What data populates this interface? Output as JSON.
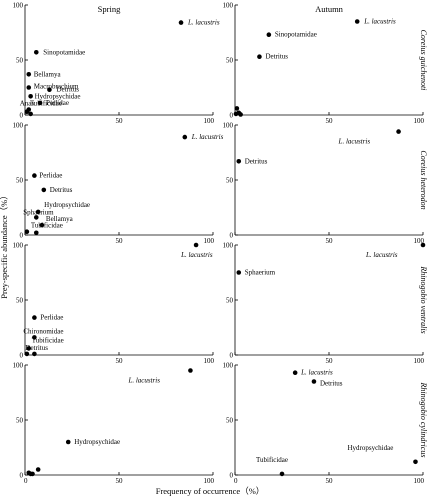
{
  "chart_data": {
    "type": "scatter",
    "column_titles": [
      "Spring",
      "Autumn"
    ],
    "xlabel": "Frequency of occurrence（%）",
    "ylabel": "Prey-specific abundance（%）",
    "xlim": [
      0,
      100
    ],
    "ylim": [
      0,
      100
    ],
    "x_ticks": [
      "0",
      "50",
      "100"
    ],
    "y_ticks": [
      "0",
      "50",
      "100"
    ],
    "species": [
      "Coreius guichenoti",
      "Coreius heterodon",
      "Rhinogobio ventralis",
      "Rhinogobio cylindricus"
    ],
    "panels": [
      {
        "species": "Coreius guichenoti",
        "season": "Spring",
        "points": [
          {
            "x": 83,
            "y": 84,
            "label": "L. lacustris",
            "italic": true
          },
          {
            "x": 6,
            "y": 57,
            "label": "Sinopotamidae"
          },
          {
            "x": 2,
            "y": 37,
            "label": "Bellamya"
          },
          {
            "x": 2,
            "y": 25,
            "label": "Macrobrachium"
          },
          {
            "x": 13,
            "y": 23,
            "label": "Detritus"
          },
          {
            "x": 3,
            "y": 17,
            "label": "Hydropsychidae"
          },
          {
            "x": 8,
            "y": 11,
            "label": "Perlidae"
          },
          {
            "x": 2,
            "y": 5,
            "label": "Anax"
          },
          {
            "x": 1,
            "y": 3,
            "label": "Tubificidae"
          },
          {
            "x": 3,
            "y": 1,
            "label": ""
          }
        ]
      },
      {
        "species": "Coreius guichenoti",
        "season": "Autumn",
        "points": [
          {
            "x": 65,
            "y": 85,
            "label": "L. lacustris",
            "italic": true
          },
          {
            "x": 18,
            "y": 73,
            "label": "Sinopotamidae"
          },
          {
            "x": 13,
            "y": 53,
            "label": "Detritus"
          },
          {
            "x": 1,
            "y": 6,
            "label": ""
          },
          {
            "x": 2,
            "y": 2,
            "label": ""
          },
          {
            "x": 0.5,
            "y": 1,
            "label": ""
          },
          {
            "x": 3,
            "y": 0.5,
            "label": ""
          }
        ]
      },
      {
        "species": "Coreius heterodon",
        "season": "Spring",
        "points": [
          {
            "x": 85,
            "y": 89,
            "label": "L. lacustris",
            "italic": true
          },
          {
            "x": 5,
            "y": 54,
            "label": "Perlidae"
          },
          {
            "x": 10,
            "y": 41,
            "label": "Detritus"
          },
          {
            "x": 7,
            "y": 21,
            "label": "Hydropsychidae"
          },
          {
            "x": 6,
            "y": 16,
            "label": "Sphaerium"
          },
          {
            "x": 9,
            "y": 9,
            "label": "Bellamya"
          },
          {
            "x": 1,
            "y": 3,
            "label": "Tubificidae"
          },
          {
            "x": 6,
            "y": 2,
            "label": ""
          }
        ]
      },
      {
        "species": "Coreius heterodon",
        "season": "Autumn",
        "points": [
          {
            "x": 87,
            "y": 94,
            "label": "L. lacustris",
            "italic": true
          },
          {
            "x": 2,
            "y": 67,
            "label": "Detritus"
          }
        ]
      },
      {
        "species": "Rhinogobio ventralis",
        "season": "Spring",
        "points": [
          {
            "x": 91,
            "y": 100,
            "label": "L. lacustris",
            "italic": true
          },
          {
            "x": 5,
            "y": 34,
            "label": "Perlidae"
          },
          {
            "x": 5,
            "y": 16,
            "label": "Chironomidae"
          },
          {
            "x": 2,
            "y": 6,
            "label": "Tubificidae"
          },
          {
            "x": 5,
            "y": 1,
            "label": "Detritus"
          },
          {
            "x": 1,
            "y": 1,
            "label": ""
          }
        ]
      },
      {
        "species": "Rhinogobio ventralis",
        "season": "Autumn",
        "points": [
          {
            "x": 100,
            "y": 100,
            "label": "L. lacustris",
            "italic": true
          },
          {
            "x": 2,
            "y": 75,
            "label": "Sphaerium"
          }
        ]
      },
      {
        "species": "Rhinogobio cylindricus",
        "season": "Spring",
        "points": [
          {
            "x": 88,
            "y": 95,
            "label": "L. lacustris",
            "italic": true
          },
          {
            "x": 23,
            "y": 30,
            "label": "Hydropsychidae"
          },
          {
            "x": 7,
            "y": 5,
            "label": ""
          },
          {
            "x": 2,
            "y": 2,
            "label": ""
          },
          {
            "x": 3,
            "y": 1,
            "label": ""
          },
          {
            "x": 4,
            "y": 1,
            "label": ""
          }
        ]
      },
      {
        "species": "Rhinogobio cylindricus",
        "season": "Autumn",
        "points": [
          {
            "x": 32,
            "y": 93,
            "label": "L. lacustris",
            "italic": true
          },
          {
            "x": 42,
            "y": 85,
            "label": "Detritus"
          },
          {
            "x": 96,
            "y": 12,
            "label": "Hydropsychidae"
          },
          {
            "x": 25,
            "y": 1,
            "label": "Tubificidae"
          }
        ]
      }
    ]
  }
}
